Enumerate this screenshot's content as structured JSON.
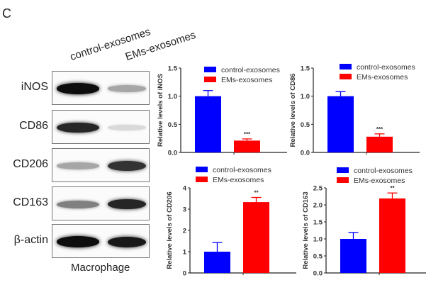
{
  "figure": {
    "panel_letter": "C",
    "western_blot": {
      "lanes": [
        "control-exosomes",
        "EMs-exosomes"
      ],
      "rows": [
        {
          "label": "iNOS",
          "intensity": [
            0.95,
            0.35
          ]
        },
        {
          "label": "CD86",
          "intensity": [
            0.85,
            0.15
          ]
        },
        {
          "label": "CD206",
          "intensity": [
            0.35,
            0.8
          ]
        },
        {
          "label": "CD163",
          "intensity": [
            0.5,
            0.85
          ]
        },
        {
          "label": "β-actin",
          "intensity": [
            0.95,
            0.9
          ]
        }
      ],
      "xlabel": "Macrophage"
    }
  },
  "chart_data": [
    {
      "type": "bar",
      "title": "",
      "categories": [
        "control-exosomes",
        "EMs-exosomes"
      ],
      "values": [
        1.0,
        0.21
      ],
      "errors": [
        0.1,
        0.03
      ],
      "significance": [
        "",
        "***"
      ],
      "ylabel": "Relative levels of iNOS",
      "xlabel": "",
      "ylim": [
        0,
        1.5
      ],
      "yticks": [
        "0.0",
        "0.5",
        "1.0",
        "1.5"
      ],
      "legend": [
        "control-exosomes",
        "EMs-exosomes"
      ],
      "colors": [
        "#0000ff",
        "#ff0000"
      ],
      "grid": false
    },
    {
      "type": "bar",
      "title": "",
      "categories": [
        "control-exosomes",
        "EMs-exosomes"
      ],
      "values": [
        1.0,
        0.28
      ],
      "errors": [
        0.08,
        0.05
      ],
      "significance": [
        "",
        "***"
      ],
      "ylabel": "Relative levels of CD86",
      "xlabel": "",
      "ylim": [
        0,
        1.5
      ],
      "yticks": [
        "0.0",
        "0.5",
        "1.0",
        "1.5"
      ],
      "legend": [
        "control-exosomes",
        "EMs-exosomes"
      ],
      "colors": [
        "#0000ff",
        "#ff0000"
      ],
      "grid": false
    },
    {
      "type": "bar",
      "title": "",
      "categories": [
        "control-exosomes",
        "EMs-exosomes"
      ],
      "values": [
        1.0,
        3.33
      ],
      "errors": [
        0.43,
        0.22
      ],
      "significance": [
        "",
        "**"
      ],
      "ylabel": "Relative levels of CD206",
      "xlabel": "",
      "ylim": [
        0,
        4
      ],
      "yticks": [
        "0",
        "1",
        "2",
        "3",
        "4"
      ],
      "legend": [
        "control-exosomes",
        "EMs-exosomes"
      ],
      "colors": [
        "#0000ff",
        "#ff0000"
      ],
      "grid": false
    },
    {
      "type": "bar",
      "title": "",
      "categories": [
        "control-exosomes",
        "EMs-exosomes"
      ],
      "values": [
        1.0,
        2.19
      ],
      "errors": [
        0.19,
        0.16
      ],
      "significance": [
        "",
        "**"
      ],
      "ylabel": "Relative levels of CD163",
      "xlabel": "",
      "ylim": [
        0,
        2.5
      ],
      "yticks": [
        "0.0",
        "0.5",
        "1.0",
        "1.5",
        "2.0",
        "2.5"
      ],
      "legend": [
        "control-exosomes",
        "EMs-exosomes"
      ],
      "colors": [
        "#0000ff",
        "#ff0000"
      ],
      "grid": false
    }
  ]
}
